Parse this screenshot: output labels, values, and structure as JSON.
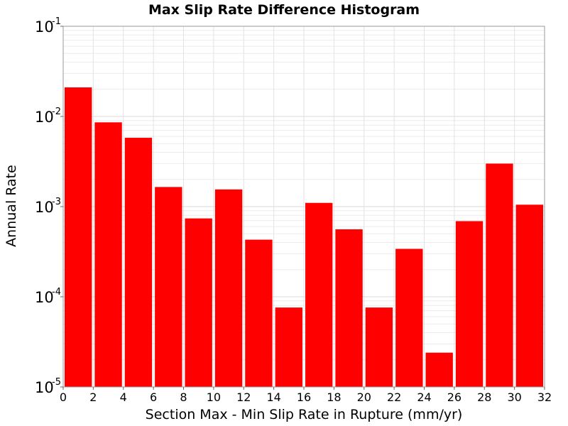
{
  "chart_data": {
    "type": "bar",
    "title": "Max Slip Rate Difference Histogram",
    "xlabel": "Section Max - Min Slip Rate in Rupture (mm/yr)",
    "ylabel": "Annual Rate",
    "y_scale": "log",
    "ylim": [
      1e-05,
      0.1
    ],
    "xlim": [
      0,
      32
    ],
    "bin_width": 2,
    "bin_starts": [
      0,
      2,
      4,
      6,
      8,
      10,
      12,
      14,
      16,
      18,
      20,
      22,
      24,
      26,
      28,
      30
    ],
    "values": [
      0.021,
      0.0086,
      0.0058,
      0.00165,
      0.00074,
      0.00155,
      0.00043,
      7.6e-05,
      0.0011,
      0.00056,
      7.6e-05,
      0.00034,
      2.4e-05,
      0.00069,
      0.003,
      0.00105
    ],
    "bar_color": "#ff0000",
    "x_ticks": [
      "0",
      "2",
      "4",
      "6",
      "8",
      "10",
      "12",
      "14",
      "16",
      "18",
      "20",
      "22",
      "24",
      "26",
      "28",
      "30",
      "32"
    ],
    "y_ticks": [
      {
        "base": "10",
        "exp": "-5"
      },
      {
        "base": "10",
        "exp": "-4"
      },
      {
        "base": "10",
        "exp": "-3"
      },
      {
        "base": "10",
        "exp": "-2"
      },
      {
        "base": "10",
        "exp": "-1"
      }
    ],
    "grid": true,
    "legend": "none"
  }
}
